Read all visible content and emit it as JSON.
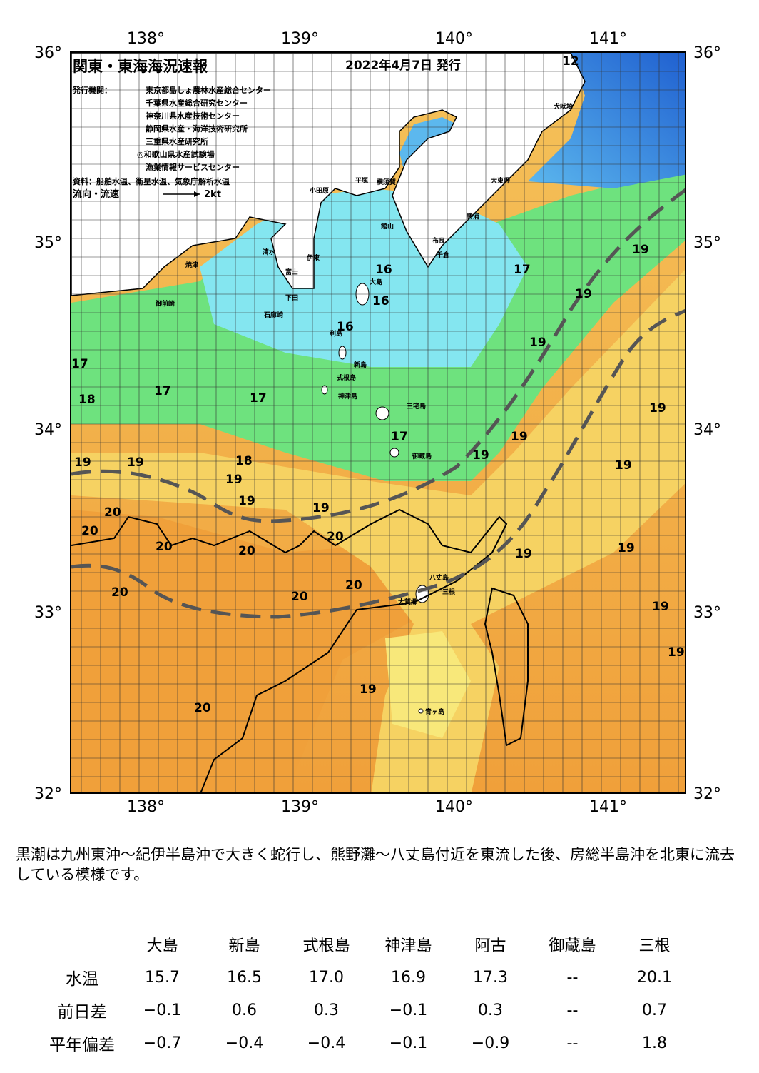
{
  "map": {
    "title": "関東・東海海況速報",
    "issue_date": "2022年4月7日 発行",
    "issuer_label": "発行機関：",
    "issuers": [
      "東京都島しょ農林水産総合センター",
      "千葉県水産総合研究センター",
      "神奈川県水産技術センター",
      "静岡県水産・海洋技術研究所",
      "三重県水産研究所",
      "◎和歌山県水産試験場",
      "漁業情報サービスセンター"
    ],
    "source": "資料：船舶水温、衛星水温、気象庁解析水温",
    "flow_label": "流向・流速",
    "flow_scale": "2kt",
    "lon_labels": [
      "138°",
      "139°",
      "140°",
      "141°"
    ],
    "lat_labels": [
      "36°",
      "35°",
      "34°",
      "33°",
      "32°"
    ],
    "isotherm_labels": [
      "12",
      "16",
      "16",
      "16",
      "17",
      "17",
      "17",
      "17",
      "17",
      "18",
      "18",
      "19",
      "19",
      "19",
      "19",
      "19",
      "19",
      "19",
      "19",
      "19",
      "19",
      "19",
      "19",
      "19",
      "19",
      "19",
      "19",
      "19",
      "20",
      "20",
      "20",
      "20",
      "20",
      "20",
      "20",
      "20",
      "20"
    ],
    "place_names": [
      "小田原",
      "平塚",
      "横須賀",
      "館山",
      "大東岬",
      "犬吠埼",
      "勝浦",
      "千倉",
      "布良",
      "大島",
      "利島",
      "新島",
      "式根島",
      "神津島",
      "三宅島",
      "御蔵島",
      "八丈島",
      "三根",
      "大賀郷",
      "青ヶ島",
      "伊東",
      "下田",
      "石廊崎",
      "御前崎",
      "焼津",
      "清水",
      "富士"
    ],
    "colors": {
      "deep_blue": "#2a6fd6",
      "cyan": "#7fe6f2",
      "green": "#66e27a",
      "yellow": "#f6d65a",
      "orange": "#f2a23a",
      "kuroshio_line": "#555555"
    }
  },
  "description": "黒潮は九州東沖～紀伊半島沖で大きく蛇行し、熊野灘～八丈島付近を東流した後、房総半島沖を北東に流去している模様です。",
  "table": {
    "columns": [
      "大島",
      "新島",
      "式根島",
      "神津島",
      "阿古",
      "御蔵島",
      "三根"
    ],
    "rows": [
      {
        "label": "水温",
        "values": [
          "15.7",
          "16.5",
          "17.0",
          "16.9",
          "17.3",
          "--",
          "20.1"
        ]
      },
      {
        "label": "前日差",
        "values": [
          "−0.1",
          "0.6",
          "0.3",
          "−0.1",
          "0.3",
          "--",
          "0.7"
        ]
      },
      {
        "label": "平年偏差",
        "values": [
          "−0.7",
          "−0.4",
          "−0.4",
          "−0.1",
          "−0.9",
          "--",
          "1.8"
        ]
      }
    ]
  }
}
